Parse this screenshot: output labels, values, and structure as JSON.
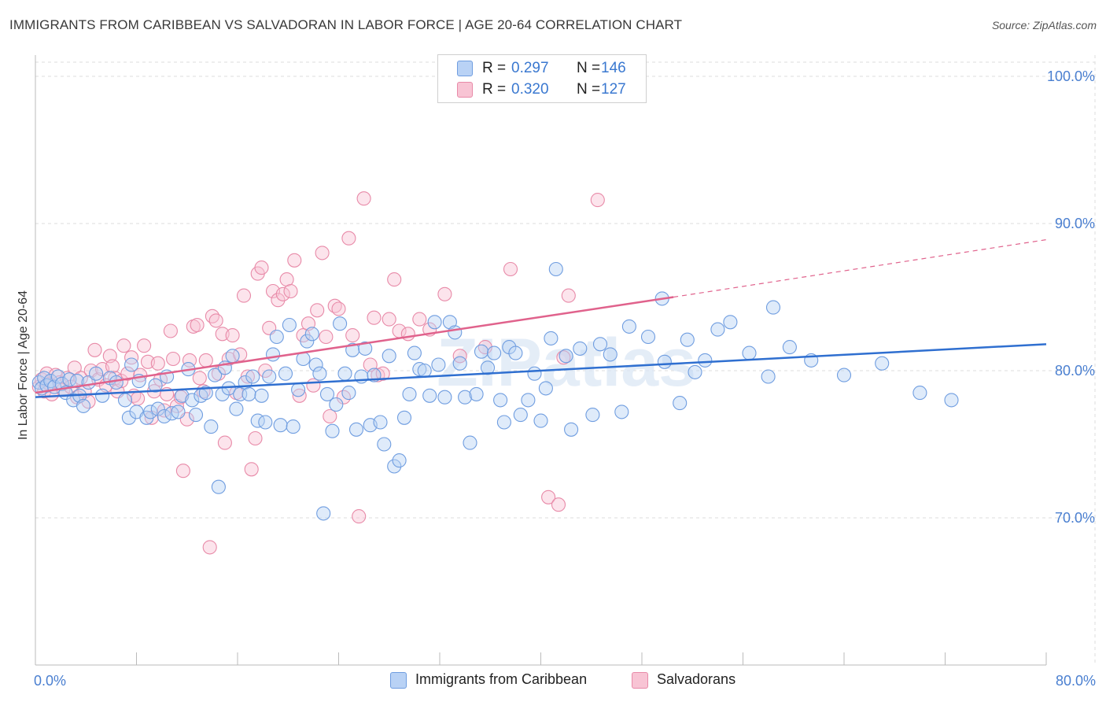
{
  "header": {
    "title": "IMMIGRANTS FROM CARIBBEAN VS SALVADORAN IN LABOR FORCE | AGE 20-64 CORRELATION CHART",
    "source": "Source: ZipAtlas.com"
  },
  "watermark": "ZIPatlas",
  "legend": {
    "series": [
      {
        "r_label": "R =",
        "r_value": "0.297",
        "n_label": "N =",
        "n_value": "146"
      },
      {
        "r_label": "R =",
        "r_value": "0.320",
        "n_label": "N =",
        "n_value": "127"
      }
    ]
  },
  "colors": {
    "blue_fill": "#b9d2f5",
    "blue_stroke": "#6f9de0",
    "blue_line": "#2f6fd0",
    "pink_fill": "#f8c4d4",
    "pink_stroke": "#e88aa8",
    "pink_line": "#e0628c",
    "tick_text": "#4a7fd0",
    "grid": "#dddddd"
  },
  "chart_data": {
    "type": "scatter",
    "xlabel": "",
    "ylabel": "In Labor Force | Age 20-64",
    "x_tick_labels": [
      "0.0%",
      "80.0%"
    ],
    "y_tick_labels": [
      "70.0%",
      "80.0%",
      "90.0%",
      "100.0%"
    ],
    "xlim": [
      0,
      80
    ],
    "ylim": [
      60,
      101
    ],
    "grid": true,
    "legend_position": "top-center",
    "series": [
      {
        "name": "Immigrants from Caribbean",
        "color": "#6f9de0",
        "trend": {
          "x": [
            0,
            80
          ],
          "y": [
            78.2,
            81.8
          ],
          "dashed_from": null
        },
        "points": [
          [
            0.3,
            79.2
          ],
          [
            0.5,
            78.8
          ],
          [
            0.7,
            79.5
          ],
          [
            0.9,
            79.0
          ],
          [
            1.2,
            79.3
          ],
          [
            1.5,
            78.9
          ],
          [
            1.8,
            79.6
          ],
          [
            2.1,
            79.1
          ],
          [
            2.4,
            78.5
          ],
          [
            2.7,
            79.4
          ],
          [
            3.0,
            78.0
          ],
          [
            3.3,
            79.3
          ],
          [
            3.5,
            78.3
          ],
          [
            3.8,
            77.6
          ],
          [
            4.2,
            79.2
          ],
          [
            4.8,
            79.8
          ],
          [
            5.3,
            78.3
          ],
          [
            5.9,
            79.5
          ],
          [
            6.4,
            79.2
          ],
          [
            7.1,
            78.0
          ],
          [
            7.4,
            76.8
          ],
          [
            7.6,
            80.4
          ],
          [
            8.0,
            77.2
          ],
          [
            8.2,
            79.3
          ],
          [
            8.8,
            76.8
          ],
          [
            9.1,
            77.2
          ],
          [
            9.5,
            79.0
          ],
          [
            9.7,
            77.4
          ],
          [
            10.2,
            76.9
          ],
          [
            10.4,
            79.6
          ],
          [
            10.8,
            77.1
          ],
          [
            11.3,
            77.2
          ],
          [
            11.6,
            78.3
          ],
          [
            12.1,
            80.1
          ],
          [
            12.4,
            78.0
          ],
          [
            12.7,
            77.0
          ],
          [
            13.1,
            78.3
          ],
          [
            13.5,
            78.5
          ],
          [
            13.9,
            76.2
          ],
          [
            14.2,
            79.7
          ],
          [
            14.5,
            72.1
          ],
          [
            14.8,
            78.4
          ],
          [
            15.0,
            80.2
          ],
          [
            15.3,
            78.8
          ],
          [
            15.6,
            81.0
          ],
          [
            15.9,
            77.4
          ],
          [
            16.2,
            78.4
          ],
          [
            16.6,
            79.2
          ],
          [
            16.9,
            78.4
          ],
          [
            17.2,
            79.6
          ],
          [
            17.6,
            76.6
          ],
          [
            17.9,
            78.3
          ],
          [
            18.2,
            76.5
          ],
          [
            18.5,
            79.6
          ],
          [
            18.8,
            81.1
          ],
          [
            19.1,
            82.3
          ],
          [
            19.4,
            76.3
          ],
          [
            19.8,
            79.8
          ],
          [
            20.1,
            83.1
          ],
          [
            20.4,
            76.2
          ],
          [
            20.8,
            78.7
          ],
          [
            21.2,
            80.8
          ],
          [
            21.5,
            82.0
          ],
          [
            21.9,
            82.5
          ],
          [
            22.2,
            80.4
          ],
          [
            22.5,
            79.8
          ],
          [
            22.8,
            70.3
          ],
          [
            23.1,
            78.4
          ],
          [
            23.5,
            75.9
          ],
          [
            23.8,
            77.7
          ],
          [
            24.1,
            83.2
          ],
          [
            24.5,
            79.8
          ],
          [
            24.8,
            78.5
          ],
          [
            25.1,
            81.4
          ],
          [
            25.4,
            76.0
          ],
          [
            25.8,
            79.6
          ],
          [
            26.1,
            81.5
          ],
          [
            26.5,
            76.3
          ],
          [
            26.8,
            79.7
          ],
          [
            27.3,
            76.5
          ],
          [
            27.6,
            75.0
          ],
          [
            28.0,
            81.0
          ],
          [
            28.4,
            73.5
          ],
          [
            28.8,
            73.9
          ],
          [
            29.2,
            76.8
          ],
          [
            29.6,
            78.4
          ],
          [
            30.0,
            81.2
          ],
          [
            30.4,
            80.1
          ],
          [
            30.8,
            80.0
          ],
          [
            31.2,
            78.3
          ],
          [
            31.6,
            83.3
          ],
          [
            31.9,
            80.4
          ],
          [
            32.4,
            78.2
          ],
          [
            32.8,
            83.3
          ],
          [
            33.2,
            82.6
          ],
          [
            33.6,
            80.5
          ],
          [
            34.0,
            78.2
          ],
          [
            34.4,
            75.1
          ],
          [
            34.9,
            78.4
          ],
          [
            35.3,
            81.3
          ],
          [
            35.8,
            80.2
          ],
          [
            36.3,
            81.2
          ],
          [
            36.8,
            78.0
          ],
          [
            37.1,
            76.5
          ],
          [
            37.5,
            81.6
          ],
          [
            38.0,
            81.2
          ],
          [
            38.4,
            77.0
          ],
          [
            39.0,
            78.0
          ],
          [
            39.5,
            79.8
          ],
          [
            40.0,
            76.6
          ],
          [
            40.4,
            78.8
          ],
          [
            40.8,
            82.2
          ],
          [
            41.2,
            86.9
          ],
          [
            42.0,
            81.0
          ],
          [
            42.4,
            76.0
          ],
          [
            43.1,
            81.5
          ],
          [
            44.1,
            77.0
          ],
          [
            44.7,
            81.8
          ],
          [
            45.5,
            81.1
          ],
          [
            46.4,
            77.2
          ],
          [
            47.0,
            83.0
          ],
          [
            48.5,
            82.3
          ],
          [
            49.6,
            84.9
          ],
          [
            49.8,
            80.6
          ],
          [
            51.0,
            77.8
          ],
          [
            51.6,
            82.1
          ],
          [
            52.2,
            79.9
          ],
          [
            53.0,
            80.7
          ],
          [
            54.0,
            82.8
          ],
          [
            55.0,
            83.3
          ],
          [
            56.5,
            81.2
          ],
          [
            58.0,
            79.6
          ],
          [
            58.4,
            84.3
          ],
          [
            59.7,
            81.6
          ],
          [
            61.4,
            80.7
          ],
          [
            64.0,
            79.7
          ],
          [
            67.0,
            80.5
          ],
          [
            70.0,
            78.5
          ],
          [
            72.5,
            78.0
          ]
        ]
      },
      {
        "name": "Salvadorans",
        "color": "#e88aa8",
        "trend": {
          "x": [
            0,
            50.5
          ],
          "y": [
            78.5,
            85.0
          ],
          "dashed_to": [
            80,
            88.9
          ]
        },
        "points": [
          [
            0.3,
            78.9
          ],
          [
            0.5,
            79.4
          ],
          [
            0.7,
            78.6
          ],
          [
            0.9,
            79.8
          ],
          [
            1.1,
            79.1
          ],
          [
            1.3,
            78.4
          ],
          [
            1.6,
            79.7
          ],
          [
            1.9,
            79.2
          ],
          [
            2.2,
            78.7
          ],
          [
            2.5,
            79.5
          ],
          [
            2.8,
            78.9
          ],
          [
            3.1,
            80.2
          ],
          [
            3.3,
            78.2
          ],
          [
            3.6,
            79.5
          ],
          [
            3.9,
            78.6
          ],
          [
            4.2,
            77.9
          ],
          [
            4.4,
            80.0
          ],
          [
            4.7,
            81.4
          ],
          [
            5.0,
            79.4
          ],
          [
            5.3,
            80.1
          ],
          [
            5.6,
            79.0
          ],
          [
            5.9,
            81.0
          ],
          [
            6.1,
            80.3
          ],
          [
            6.3,
            79.5
          ],
          [
            6.5,
            78.6
          ],
          [
            6.8,
            79.3
          ],
          [
            7.0,
            81.7
          ],
          [
            7.3,
            79.8
          ],
          [
            7.6,
            80.9
          ],
          [
            7.8,
            78.3
          ],
          [
            8.1,
            78.1
          ],
          [
            8.3,
            79.7
          ],
          [
            8.6,
            81.7
          ],
          [
            8.9,
            80.6
          ],
          [
            9.2,
            76.8
          ],
          [
            9.4,
            78.6
          ],
          [
            9.7,
            80.5
          ],
          [
            9.9,
            79.4
          ],
          [
            10.2,
            77.3
          ],
          [
            10.4,
            78.4
          ],
          [
            10.7,
            82.7
          ],
          [
            10.9,
            80.8
          ],
          [
            11.2,
            77.6
          ],
          [
            11.5,
            78.2
          ],
          [
            11.7,
            73.2
          ],
          [
            12.0,
            76.7
          ],
          [
            12.2,
            80.7
          ],
          [
            12.5,
            83.0
          ],
          [
            12.8,
            83.1
          ],
          [
            13.0,
            79.5
          ],
          [
            13.3,
            78.6
          ],
          [
            13.5,
            80.7
          ],
          [
            13.8,
            68.0
          ],
          [
            14.0,
            83.7
          ],
          [
            14.3,
            83.4
          ],
          [
            14.5,
            79.8
          ],
          [
            14.8,
            82.5
          ],
          [
            15.0,
            75.1
          ],
          [
            15.3,
            80.8
          ],
          [
            15.6,
            82.4
          ],
          [
            15.9,
            78.5
          ],
          [
            16.2,
            81.1
          ],
          [
            16.5,
            85.1
          ],
          [
            16.8,
            79.6
          ],
          [
            17.1,
            73.3
          ],
          [
            17.4,
            75.4
          ],
          [
            17.6,
            86.6
          ],
          [
            17.9,
            87.0
          ],
          [
            18.2,
            80.0
          ],
          [
            18.5,
            82.9
          ],
          [
            18.8,
            85.4
          ],
          [
            19.2,
            84.8
          ],
          [
            19.6,
            85.2
          ],
          [
            19.9,
            86.2
          ],
          [
            20.2,
            85.4
          ],
          [
            20.5,
            87.5
          ],
          [
            20.9,
            78.3
          ],
          [
            21.2,
            82.4
          ],
          [
            21.6,
            83.2
          ],
          [
            22.0,
            79.0
          ],
          [
            22.3,
            84.1
          ],
          [
            22.7,
            88.0
          ],
          [
            23.0,
            82.3
          ],
          [
            23.3,
            76.9
          ],
          [
            23.7,
            84.4
          ],
          [
            24.0,
            84.2
          ],
          [
            24.4,
            78.2
          ],
          [
            24.8,
            89.0
          ],
          [
            25.1,
            82.4
          ],
          [
            25.6,
            70.1
          ],
          [
            26.0,
            91.7
          ],
          [
            26.5,
            80.4
          ],
          [
            26.8,
            83.6
          ],
          [
            27.1,
            79.7
          ],
          [
            27.5,
            79.8
          ],
          [
            28.0,
            83.5
          ],
          [
            28.4,
            86.2
          ],
          [
            28.8,
            82.7
          ],
          [
            29.5,
            82.5
          ],
          [
            30.4,
            83.5
          ],
          [
            31.2,
            82.8
          ],
          [
            32.4,
            85.2
          ],
          [
            33.6,
            81.0
          ],
          [
            35.6,
            81.6
          ],
          [
            37.6,
            86.9
          ],
          [
            40.6,
            71.4
          ],
          [
            41.4,
            70.9
          ],
          [
            41.8,
            80.9
          ],
          [
            42.2,
            85.1
          ],
          [
            44.5,
            91.6
          ]
        ]
      }
    ]
  }
}
